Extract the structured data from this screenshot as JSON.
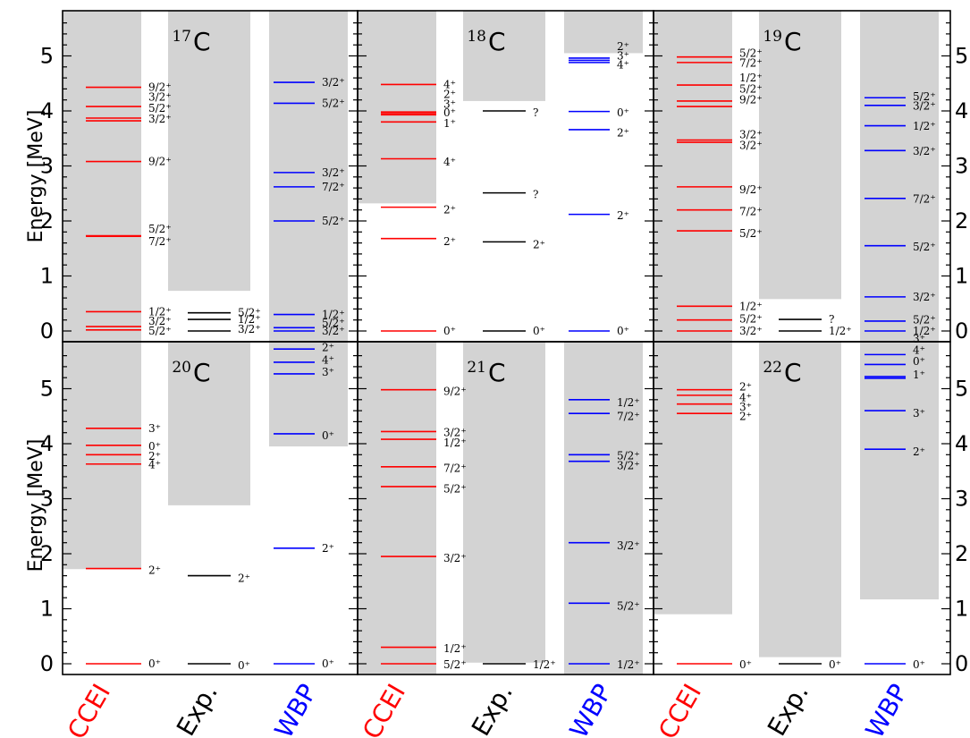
{
  "chart_data": {
    "type": "level-scheme",
    "ylabel": "Energy [MeV]",
    "ylim": [
      -0.2,
      5.85
    ],
    "yticks": [
      0,
      1,
      2,
      3,
      4,
      5
    ],
    "columns": [
      {
        "key": "CCEI",
        "label": "CCEI",
        "color": "#ff0000"
      },
      {
        "key": "Exp",
        "label": "Exp.",
        "color": "#000000"
      },
      {
        "key": "WBP",
        "label": "WBP",
        "color": "#0000ff"
      }
    ],
    "panels": [
      {
        "mass": "17",
        "element": "C",
        "thresholds": {
          "CCEI": -0.2,
          "Exp": 0.73,
          "WBP": -0.2
        },
        "levels": {
          "CCEI": [
            {
              "e": 4.43,
              "label": "9/2⁺"
            },
            {
              "e": 4.08,
              "label": "3/2⁺"
            },
            {
              "e": 3.87,
              "label": "5/2⁺"
            },
            {
              "e": 3.82,
              "label": "3/2⁺"
            },
            {
              "e": 3.08,
              "label": "9/2⁺"
            },
            {
              "e": 1.73,
              "label": "5/2⁺"
            },
            {
              "e": 1.72,
              "label": "7/2⁺"
            },
            {
              "e": 0.35,
              "label": "1/2⁺"
            },
            {
              "e": 0.08,
              "label": "3/2⁺"
            },
            {
              "e": 0.02,
              "label": "5/2⁺"
            }
          ],
          "Exp": [
            {
              "e": 0.33,
              "label": "5/2⁺"
            },
            {
              "e": 0.21,
              "label": "1/2⁺"
            },
            {
              "e": 0.0,
              "label": "3/2⁺"
            }
          ],
          "WBP": [
            {
              "e": 4.52,
              "label": "3/2⁺"
            },
            {
              "e": 4.14,
              "label": "5/2⁺"
            },
            {
              "e": 2.88,
              "label": "3/2⁺"
            },
            {
              "e": 2.62,
              "label": "7/2⁺"
            },
            {
              "e": 2.0,
              "label": "5/2⁺"
            },
            {
              "e": 0.3,
              "label": "1/2⁺"
            },
            {
              "e": 0.06,
              "label": "5/2⁺"
            },
            {
              "e": 0.0,
              "label": "3/2⁺"
            }
          ]
        },
        "placed": {
          "CCEI": [
            4.43,
            4.25,
            4.05,
            3.85,
            3.08,
            1.85,
            1.63,
            0.35,
            0.18,
            0.0
          ],
          "Exp": [
            0.33,
            0.21,
            0.03
          ],
          "WBP": [
            4.52,
            4.14,
            2.88,
            2.62,
            2.0,
            0.3,
            0.15,
            0.0
          ]
        }
      },
      {
        "mass": "18",
        "element": "C",
        "thresholds": {
          "CCEI": 2.32,
          "Exp": 4.18,
          "WBP": 5.05
        },
        "levels": {
          "CCEI": [
            {
              "e": 4.48,
              "label": "4⁺"
            },
            {
              "e": 3.98,
              "label": "2⁺"
            },
            {
              "e": 3.95,
              "label": "3⁺"
            },
            {
              "e": 3.93,
              "label": "0⁺"
            },
            {
              "e": 3.8,
              "label": "1⁺"
            },
            {
              "e": 3.13,
              "label": "4⁺"
            },
            {
              "e": 2.25,
              "label": "2⁺"
            },
            {
              "e": 1.68,
              "label": "2⁺"
            },
            {
              "e": 0.0,
              "label": "0⁺"
            }
          ],
          "Exp": [
            {
              "e": 4.0,
              "label": "?"
            },
            {
              "e": 2.51,
              "label": "?"
            },
            {
              "e": 1.62,
              "label": "2⁺"
            },
            {
              "e": 0.0,
              "label": "0⁺"
            }
          ],
          "WBP": [
            {
              "e": 4.96,
              "label": "2⁺"
            },
            {
              "e": 4.92,
              "label": "3⁺"
            },
            {
              "e": 4.88,
              "label": "4⁺"
            },
            {
              "e": 3.99,
              "label": "0⁺"
            },
            {
              "e": 3.66,
              "label": "2⁺"
            },
            {
              "e": 2.12,
              "label": "2⁺"
            },
            {
              "e": 0.0,
              "label": "0⁺"
            }
          ]
        },
        "placed": {
          "CCEI": [
            4.48,
            4.3,
            4.12,
            3.97,
            3.77,
            3.07,
            2.2,
            1.63,
            0.0
          ],
          "Exp": [
            3.97,
            2.48,
            1.57,
            0.0
          ],
          "WBP": [
            5.17,
            5.0,
            4.84,
            3.97,
            3.6,
            2.1,
            0.0
          ]
        }
      },
      {
        "mass": "19",
        "element": "C",
        "thresholds": {
          "CCEI": -0.2,
          "Exp": 0.58,
          "WBP": -0.2
        },
        "levels": {
          "CCEI": [
            {
              "e": 4.98,
              "label": "5/2⁺"
            },
            {
              "e": 4.88,
              "label": "7/2⁺"
            },
            {
              "e": 4.47,
              "label": "1/2⁺"
            },
            {
              "e": 4.18,
              "label": "5/2⁺"
            },
            {
              "e": 4.08,
              "label": "9/2⁺"
            },
            {
              "e": 3.47,
              "label": "3/2⁺"
            },
            {
              "e": 3.43,
              "label": "3/2⁺"
            },
            {
              "e": 2.62,
              "label": "9/2⁺"
            },
            {
              "e": 2.2,
              "label": "7/2⁺"
            },
            {
              "e": 1.82,
              "label": "5/2⁺"
            },
            {
              "e": 0.45,
              "label": "1/2⁺"
            },
            {
              "e": 0.2,
              "label": "5/2⁺"
            },
            {
              "e": 0.0,
              "label": "3/2⁺"
            }
          ],
          "Exp": [
            {
              "e": 0.21,
              "label": "?"
            },
            {
              "e": 0.0,
              "label": "1/2⁺"
            }
          ],
          "WBP": [
            {
              "e": 4.24,
              "label": "5/2⁺"
            },
            {
              "e": 4.1,
              "label": "3/2⁺"
            },
            {
              "e": 3.73,
              "label": "1/2⁺"
            },
            {
              "e": 3.28,
              "label": "3/2⁺"
            },
            {
              "e": 2.41,
              "label": "7/2⁺"
            },
            {
              "e": 1.55,
              "label": "5/2⁺"
            },
            {
              "e": 0.62,
              "label": "3/2⁺"
            },
            {
              "e": 0.18,
              "label": "5/2⁺"
            },
            {
              "e": 0.0,
              "label": "1/2⁺"
            }
          ]
        },
        "placed": {
          "CCEI": [
            5.05,
            4.87,
            4.6,
            4.4,
            4.2,
            3.57,
            3.37,
            2.57,
            2.17,
            1.77,
            0.45,
            0.22,
            0.0
          ],
          "Exp": [
            0.21,
            0.0
          ],
          "WBP": [
            4.26,
            4.09,
            3.72,
            3.27,
            2.4,
            1.53,
            0.62,
            0.2,
            0.0
          ]
        }
      },
      {
        "mass": "20",
        "element": "C",
        "thresholds": {
          "CCEI": 1.72,
          "Exp": 2.88,
          "WBP": 3.95
        },
        "levels": {
          "CCEI": [
            {
              "e": 4.28,
              "label": "3⁺"
            },
            {
              "e": 3.97,
              "label": "0⁺"
            },
            {
              "e": 3.8,
              "label": "2⁺"
            },
            {
              "e": 3.63,
              "label": "4⁺"
            },
            {
              "e": 1.73,
              "label": "2⁺"
            },
            {
              "e": 0.0,
              "label": "0⁺"
            }
          ],
          "Exp": [
            {
              "e": 1.6,
              "label": "2⁺"
            },
            {
              "e": 0.0,
              "label": "0⁺"
            }
          ],
          "WBP": [
            {
              "e": 5.72,
              "label": "2⁺"
            },
            {
              "e": 5.48,
              "label": "4⁺"
            },
            {
              "e": 5.27,
              "label": "3⁺"
            },
            {
              "e": 4.18,
              "label": "0⁺"
            },
            {
              "e": 2.1,
              "label": "2⁺"
            },
            {
              "e": 0.0,
              "label": "0⁺"
            }
          ]
        },
        "placed": {
          "CCEI": [
            4.28,
            3.95,
            3.77,
            3.62,
            1.7,
            0.0
          ],
          "Exp": [
            1.55,
            -0.03
          ],
          "WBP": [
            5.75,
            5.52,
            5.3,
            4.15,
            2.1,
            0.0
          ]
        }
      },
      {
        "mass": "21",
        "element": "C",
        "thresholds": {
          "CCEI": -0.2,
          "Exp": 0.02,
          "WBP": -0.2
        },
        "levels": {
          "CCEI": [
            {
              "e": 4.98,
              "label": "9/2⁺"
            },
            {
              "e": 4.22,
              "label": "3/2⁺"
            },
            {
              "e": 4.08,
              "label": "1/2⁺"
            },
            {
              "e": 3.58,
              "label": "7/2⁺"
            },
            {
              "e": 3.22,
              "label": "5/2⁺"
            },
            {
              "e": 1.95,
              "label": "3/2⁺"
            },
            {
              "e": 0.3,
              "label": "1/2⁺"
            },
            {
              "e": 0.0,
              "label": "5/2⁺"
            }
          ],
          "Exp": [
            {
              "e": 0.0,
              "label": "1/2⁺"
            }
          ],
          "WBP": [
            {
              "e": 4.8,
              "label": "1/2⁺"
            },
            {
              "e": 4.55,
              "label": "7/2⁺"
            },
            {
              "e": 3.8,
              "label": "5/2⁺"
            },
            {
              "e": 3.68,
              "label": "3/2⁺"
            },
            {
              "e": 2.2,
              "label": "3/2⁺"
            },
            {
              "e": 1.1,
              "label": "5/2⁺"
            },
            {
              "e": 0.0,
              "label": "1/2⁺"
            }
          ]
        },
        "placed": {
          "CCEI": [
            4.95,
            4.2,
            4.02,
            3.55,
            3.18,
            1.92,
            0.28,
            -0.02
          ],
          "Exp": [
            -0.02
          ],
          "WBP": [
            4.75,
            4.5,
            3.78,
            3.6,
            2.15,
            1.05,
            -0.02
          ]
        }
      },
      {
        "mass": "22",
        "element": "C",
        "thresholds": {
          "CCEI": 0.9,
          "Exp": 0.12,
          "WBP": 1.17
        },
        "levels": {
          "CCEI": [
            {
              "e": 4.98,
              "label": "2⁺"
            },
            {
              "e": 4.88,
              "label": "4⁺"
            },
            {
              "e": 4.72,
              "label": "3⁺"
            },
            {
              "e": 4.55,
              "label": "2⁺"
            },
            {
              "e": 0.0,
              "label": "0⁺"
            }
          ],
          "Exp": [
            {
              "e": 0.0,
              "label": "0⁺"
            }
          ],
          "WBP": [
            {
              "e": 5.62,
              "label": "3⁺"
            },
            {
              "e": 5.44,
              "label": "4⁺"
            },
            {
              "e": 5.22,
              "label": "0⁺"
            },
            {
              "e": 5.19,
              "label": "1⁺"
            },
            {
              "e": 4.6,
              "label": "3⁺"
            },
            {
              "e": 3.9,
              "label": "2⁺"
            },
            {
              "e": 0.0,
              "label": "0⁺"
            }
          ]
        },
        "placed": {
          "CCEI": [
            5.03,
            4.84,
            4.67,
            4.5,
            -0.02
          ],
          "Exp": [
            -0.02
          ],
          "WBP": [
            5.9,
            5.7,
            5.5,
            5.25,
            4.55,
            3.85,
            -0.02
          ]
        }
      }
    ]
  }
}
